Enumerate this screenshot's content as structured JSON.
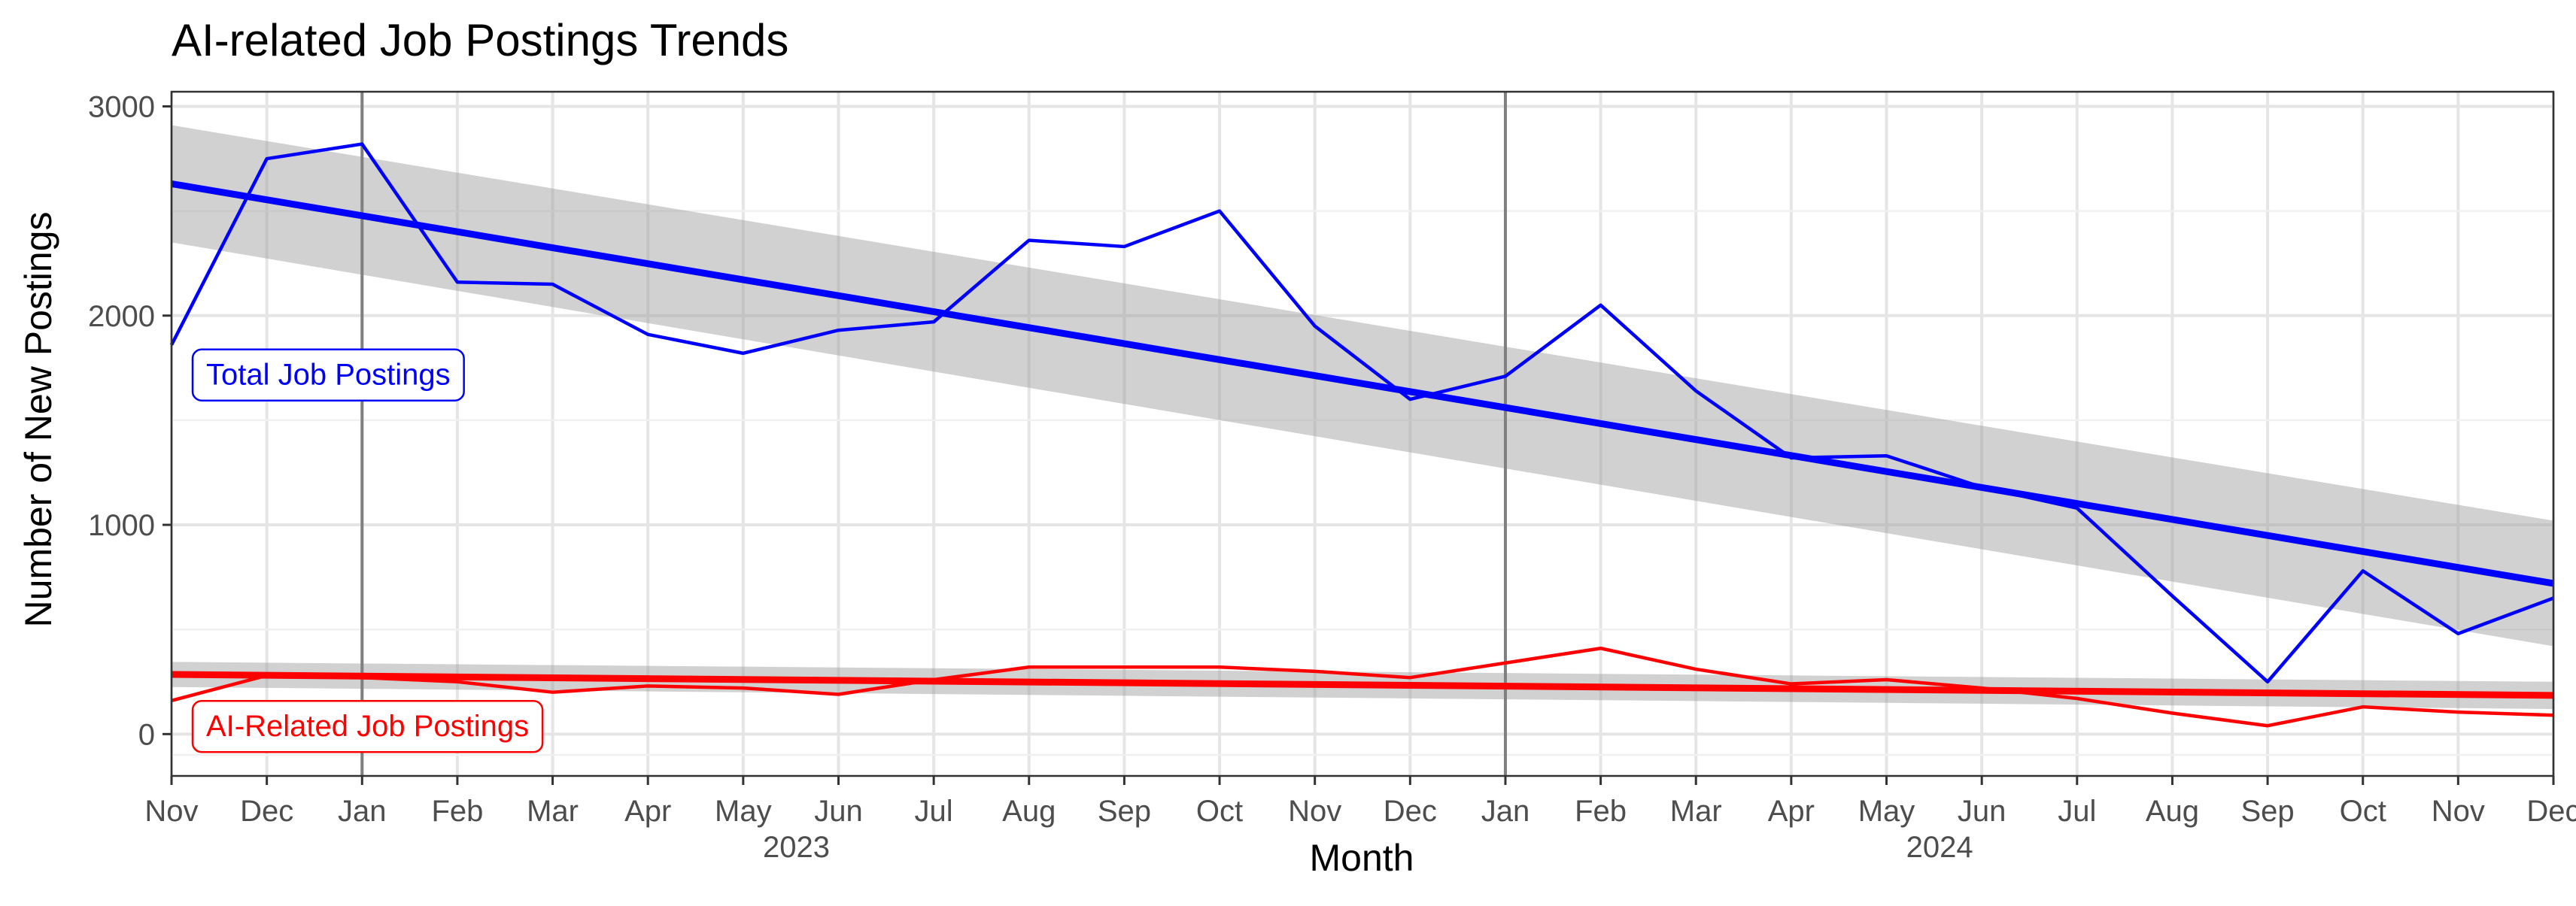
{
  "chart_data": {
    "type": "line",
    "title": "AI-related Job Postings Trends",
    "xlabel": "Month",
    "ylabel": "Number of New Postings",
    "x": [
      "2022-11",
      "2022-12",
      "2023-01",
      "2023-02",
      "2023-03",
      "2023-04",
      "2023-05",
      "2023-06",
      "2023-07",
      "2023-08",
      "2023-09",
      "2023-10",
      "2023-11",
      "2023-12",
      "2024-01",
      "2024-02",
      "2024-03",
      "2024-04",
      "2024-05",
      "2024-06",
      "2024-07",
      "2024-08",
      "2024-09",
      "2024-10",
      "2024-11",
      "2024-12"
    ],
    "x_tick_labels": [
      "Nov",
      "Dec",
      "Jan",
      "Feb",
      "Mar",
      "Apr",
      "May",
      "Jun",
      "Jul",
      "Aug",
      "Sep",
      "Oct",
      "Nov",
      "Dec",
      "Jan",
      "Feb",
      "Mar",
      "Apr",
      "May",
      "Jun",
      "Jul",
      "Aug",
      "Sep",
      "Oct",
      "Nov",
      "Dec"
    ],
    "year_labels": [
      {
        "label": "2023",
        "at": "2023-06"
      },
      {
        "label": "2024",
        "at": "2024-06"
      }
    ],
    "year_dividers": [
      "2023-01",
      "2024-01"
    ],
    "ylim": [
      -200,
      3070
    ],
    "y_ticks": [
      0,
      1000,
      2000,
      3000
    ],
    "y_tick_labels": [
      "0",
      "1000",
      "2000",
      "3000"
    ],
    "grid": true,
    "series": [
      {
        "name": "Total Job Postings",
        "color": "#0000ff",
        "values": [
          1860,
          2750,
          2820,
          2160,
          2150,
          1910,
          1820,
          1930,
          1970,
          2360,
          2330,
          2500,
          1950,
          1600,
          1710,
          2050,
          1640,
          1320,
          1330,
          1180,
          1080,
          660,
          250,
          780,
          480,
          650
        ],
        "trend": {
          "start": 2630,
          "end": 720,
          "band_halfwidth_start": 280,
          "band_halfwidth_end": 300
        }
      },
      {
        "name": "AI-Related Job Postings",
        "color": "#ff0000",
        "values": [
          160,
          280,
          270,
          250,
          200,
          230,
          220,
          190,
          260,
          320,
          320,
          320,
          300,
          270,
          340,
          410,
          310,
          240,
          260,
          220,
          170,
          100,
          40,
          130,
          105,
          90
        ],
        "trend": {
          "start": 285,
          "end": 185,
          "band_halfwidth_start": 60,
          "band_halfwidth_end": 65
        }
      }
    ],
    "annotations": [
      {
        "text": "Total Job Postings",
        "color": "#0000ff",
        "at_x": "2022-11",
        "at_y": 1720
      },
      {
        "text": "AI-Related Job Postings",
        "color": "#ff0000",
        "at_x": "2022-11",
        "at_y": 40
      }
    ]
  }
}
